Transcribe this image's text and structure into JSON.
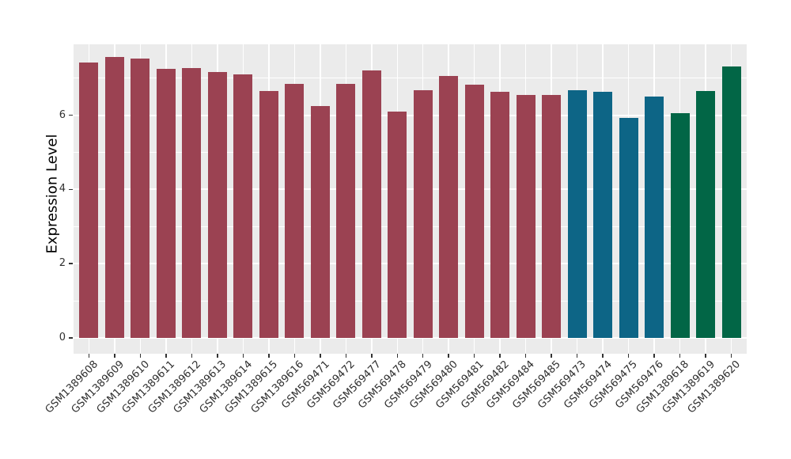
{
  "figure": {
    "background": "#FFFFFF",
    "panel_background": "#EBEBEB",
    "gridline_color": "#FFFFFF",
    "axis_text_color": "#303030",
    "tick_mark_color": "#333333"
  },
  "chart_data": {
    "type": "bar",
    "title": "",
    "xlabel": "",
    "ylabel": "Expression Level",
    "ylim": [
      0,
      7.91
    ],
    "yticks": [
      0,
      2,
      4,
      6
    ],
    "yticks_minor": [
      1,
      3,
      5,
      7
    ],
    "grid": true,
    "legend_position": "none",
    "x_tick_label_angle": 45,
    "categories": [
      "GSM1389608",
      "GSM1389609",
      "GSM1389610",
      "GSM1389611",
      "GSM1389612",
      "GSM1389613",
      "GSM1389614",
      "GSM1389615",
      "GSM1389616",
      "GSM569471",
      "GSM569472",
      "GSM569477",
      "GSM569478",
      "GSM569479",
      "GSM569480",
      "GSM569481",
      "GSM569482",
      "GSM569484",
      "GSM569485",
      "GSM569473",
      "GSM569474",
      "GSM569475",
      "GSM569476",
      "GSM1389618",
      "GSM1389619",
      "GSM1389620"
    ],
    "values": [
      7.43,
      7.56,
      7.52,
      7.24,
      7.27,
      7.17,
      7.1,
      6.66,
      6.84,
      6.25,
      6.85,
      7.2,
      6.1,
      6.67,
      7.06,
      6.83,
      6.63,
      6.55,
      6.55,
      6.68,
      6.63,
      5.92,
      6.5,
      6.05,
      6.65,
      7.32
    ],
    "bar_groups": [
      "series1",
      "series1",
      "series1",
      "series1",
      "series1",
      "series1",
      "series1",
      "series1",
      "series1",
      "series1",
      "series1",
      "series1",
      "series1",
      "series1",
      "series1",
      "series1",
      "series1",
      "series1",
      "series1",
      "series2",
      "series2",
      "series2",
      "series2",
      "series3",
      "series3",
      "series3"
    ],
    "group_colors": {
      "series1": "#9B4252",
      "series2": "#0D6586",
      "series3": "#026646"
    }
  }
}
